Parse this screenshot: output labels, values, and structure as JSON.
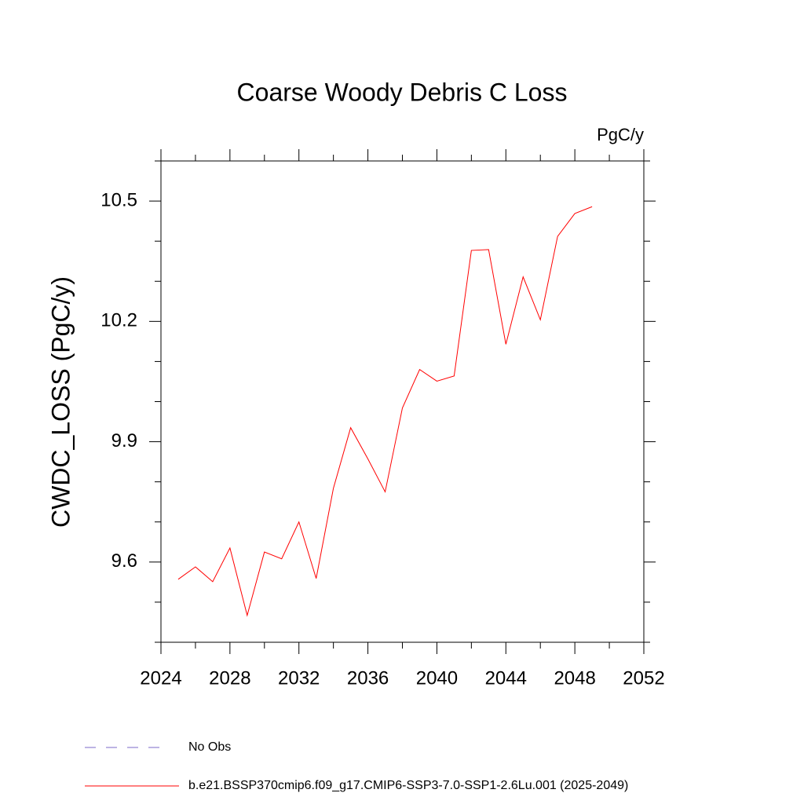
{
  "chart_data": {
    "type": "line",
    "title": "Coarse Woody Debris C Loss",
    "units": "PgC/y",
    "ylabel": "CWDC_LOSS  (PgC/y)",
    "x": [
      2025,
      2026,
      2027,
      2028,
      2029,
      2030,
      2031,
      2032,
      2033,
      2034,
      2035,
      2036,
      2037,
      2038,
      2039,
      2040,
      2041,
      2042,
      2043,
      2044,
      2045,
      2046,
      2047,
      2048,
      2049
    ],
    "series": [
      {
        "name": "No Obs",
        "color": "#7b68c8",
        "dashed": true,
        "values": [
          null,
          null,
          null,
          null,
          null,
          null,
          null,
          null,
          null,
          null,
          null,
          null,
          null,
          null,
          null,
          null,
          null,
          null,
          null,
          null,
          null,
          null,
          null,
          null,
          null
        ]
      },
      {
        "name": "b.e21.BSSP370cmip6.f09_g17.CMIP6-SSP3-7.0-SSP1-2.6Lu.001 (2025-2049)",
        "color": "#ff0000",
        "dashed": false,
        "values": [
          9.557,
          9.588,
          9.551,
          9.635,
          9.467,
          9.625,
          9.608,
          9.7,
          9.559,
          9.784,
          9.935,
          9.857,
          9.775,
          9.984,
          10.08,
          10.051,
          10.064,
          10.377,
          10.379,
          10.143,
          10.311,
          10.204,
          10.412,
          10.469,
          10.486
        ]
      }
    ],
    "xlim": [
      2024,
      2052
    ],
    "xticks": [
      2024,
      2028,
      2032,
      2036,
      2040,
      2044,
      2048,
      2052
    ],
    "xminor_ticks": [
      2026,
      2030,
      2034,
      2038,
      2042,
      2046,
      2050
    ],
    "ylim": [
      9.4,
      10.6
    ],
    "yticks": [
      9.6,
      9.9,
      10.2,
      10.5
    ],
    "yminor_ticks": [
      9.4,
      9.5,
      9.7,
      9.8,
      10.0,
      10.1,
      10.3,
      10.4,
      10.6
    ],
    "grid": false
  }
}
